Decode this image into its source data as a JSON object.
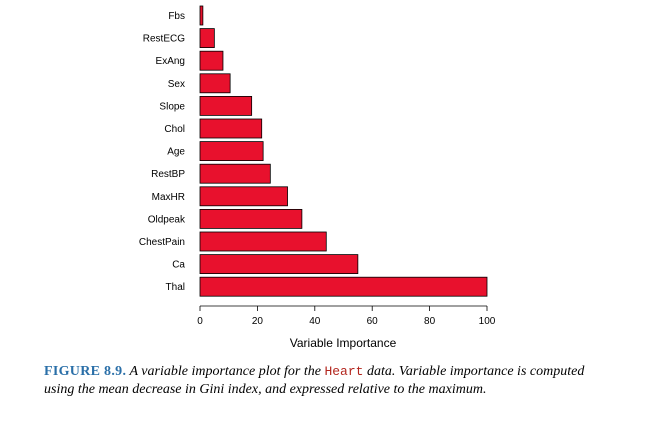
{
  "chart_data": {
    "type": "bar",
    "orientation": "horizontal",
    "categories": [
      "Fbs",
      "RestECG",
      "ExAng",
      "Sex",
      "Slope",
      "Chol",
      "Age",
      "RestBP",
      "MaxHR",
      "Oldpeak",
      "ChestPain",
      "Ca",
      "Thal"
    ],
    "values": [
      1,
      5,
      8,
      10.5,
      18,
      21.5,
      22,
      24.5,
      30.5,
      35.5,
      44,
      55,
      100
    ],
    "xlabel": "Variable Importance",
    "xticks": [
      "0",
      "20",
      "40",
      "60",
      "80",
      "100"
    ],
    "xlim": [
      0,
      100
    ],
    "bar_color": "#e8112d",
    "grid": false,
    "legend": "none"
  },
  "caption": {
    "figure_label": "FIGURE 8.9.",
    "text_1": " A variable importance plot for the ",
    "code_word": "Heart",
    "text_2": " data. Variable importance is computed using the mean decrease in Gini index, and expressed relative to the maximum."
  },
  "colors": {
    "figure_label": "#2a6fa8",
    "code_word": "#b3261e"
  }
}
